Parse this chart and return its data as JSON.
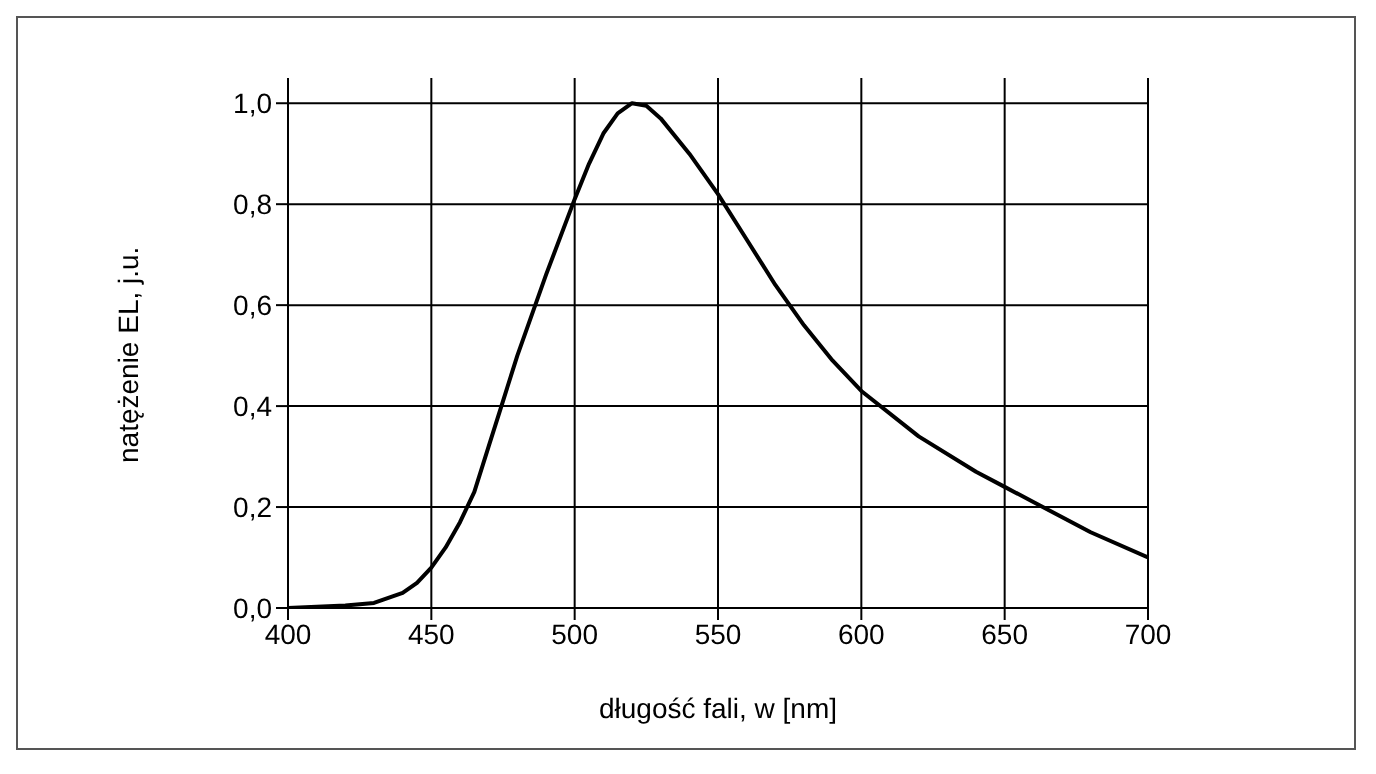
{
  "chart_data": {
    "type": "line",
    "xlabel": "długość fali, w [nm]",
    "ylabel": "natężenie EL, j.u.",
    "x": [
      400,
      420,
      430,
      440,
      445,
      450,
      455,
      460,
      465,
      470,
      475,
      480,
      490,
      500,
      505,
      510,
      515,
      520,
      525,
      530,
      540,
      550,
      560,
      570,
      580,
      590,
      600,
      620,
      640,
      650,
      660,
      680,
      700
    ],
    "series": [
      {
        "color": "#000000",
        "values": [
          0.0,
          0.005,
          0.01,
          0.03,
          0.05,
          0.08,
          0.12,
          0.17,
          0.23,
          0.32,
          0.41,
          0.5,
          0.66,
          0.81,
          0.88,
          0.94,
          0.98,
          1.0,
          0.995,
          0.97,
          0.9,
          0.82,
          0.73,
          0.64,
          0.56,
          0.49,
          0.43,
          0.34,
          0.27,
          0.24,
          0.21,
          0.15,
          0.1
        ]
      }
    ],
    "xlim": [
      400,
      700
    ],
    "xticks": [
      400,
      450,
      500,
      550,
      600,
      650,
      700
    ],
    "ylim": [
      0,
      1.05
    ],
    "yticks": [
      {
        "value": 0,
        "label": "0,0"
      },
      {
        "value": 0.2,
        "label": "0,2"
      },
      {
        "value": 0.4,
        "label": "0,4"
      },
      {
        "value": 0.6,
        "label": "0,6"
      },
      {
        "value": 0.8,
        "label": "0,8"
      },
      {
        "value": 1.0,
        "label": "1,0"
      }
    ],
    "grid": true,
    "marker": "none",
    "line_style": "solid",
    "legend": false
  }
}
